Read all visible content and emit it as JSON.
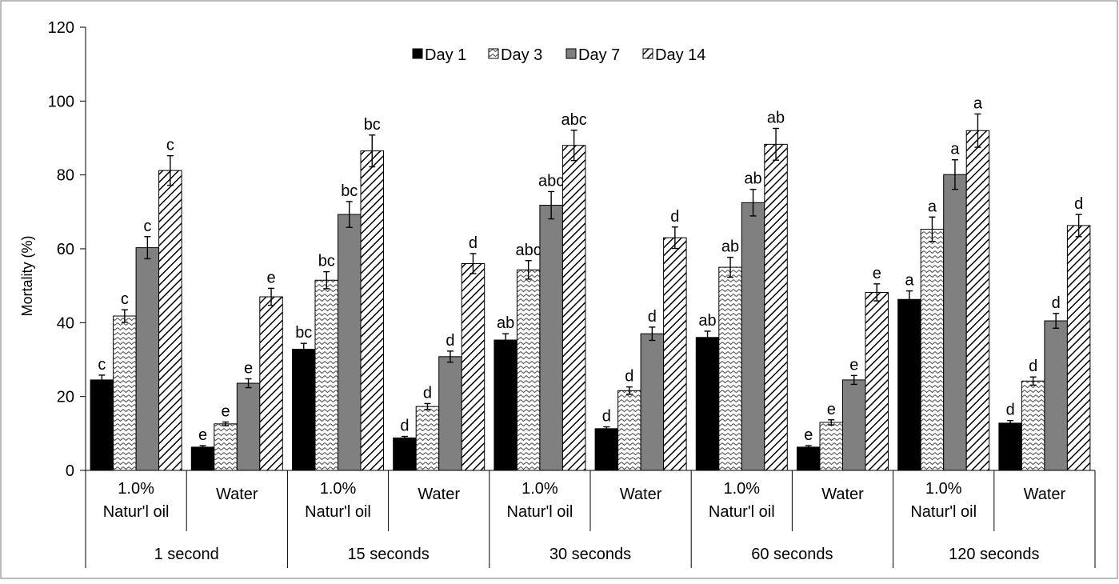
{
  "chart_data": {
    "type": "bar",
    "title": "",
    "xlabel": "",
    "ylabel": "Mortality (%)",
    "ylim": [
      0,
      120
    ],
    "yticks": [
      "0",
      "20",
      "40",
      "60",
      "80",
      "100",
      "120"
    ],
    "legend_position": "top-center",
    "grid": false,
    "treatments": [
      "1.0%\nNatur'l oil",
      "Water"
    ],
    "times": [
      "1 second",
      "15 seconds",
      "30 seconds",
      "60 seconds",
      "120 seconds"
    ],
    "categories": [
      "1 second / 1.0% Natur'l oil",
      "1 second / Water",
      "15 seconds / 1.0% Natur'l oil",
      "15 seconds / Water",
      "30 seconds / 1.0% Natur'l oil",
      "30 seconds / Water",
      "60 seconds / 1.0% Natur'l oil",
      "60 seconds / Water",
      "120 seconds / 1.0% Natur'l oil",
      "120 seconds / Water"
    ],
    "series": [
      {
        "name": "Day 1",
        "color": "#000000",
        "pattern": "solid",
        "values": [
          24.5,
          6.3,
          32.8,
          8.8,
          35.3,
          11.3,
          36.0,
          6.3,
          46.3,
          12.8
        ],
        "errors": [
          1.3,
          0.4,
          1.6,
          0.4,
          1.7,
          0.5,
          1.7,
          0.4,
          2.3,
          0.7
        ],
        "letters": [
          "c",
          "e",
          "bc",
          "d",
          "ab",
          "d",
          "ab",
          "e",
          "a",
          "d"
        ]
      },
      {
        "name": "Day 3",
        "color": "#ffffff",
        "pattern": "zigzag",
        "values": [
          41.8,
          12.6,
          51.5,
          17.3,
          54.3,
          21.6,
          55.0,
          13.0,
          65.3,
          24.2
        ],
        "errors": [
          1.7,
          0.5,
          2.3,
          0.8,
          2.5,
          1.0,
          2.7,
          0.7,
          3.3,
          1.1
        ],
        "letters": [
          "c",
          "e",
          "bc",
          "d",
          "abc",
          "d",
          "ab",
          "e",
          "a",
          "d"
        ]
      },
      {
        "name": "Day 7",
        "color": "#808080",
        "pattern": "solid",
        "values": [
          60.3,
          23.6,
          69.3,
          30.8,
          71.8,
          37.0,
          72.5,
          24.5,
          80.1,
          40.5
        ],
        "errors": [
          3.0,
          1.2,
          3.5,
          1.5,
          3.7,
          1.8,
          3.6,
          1.2,
          4.0,
          2.0
        ],
        "letters": [
          "c",
          "e",
          "bc",
          "d",
          "abc",
          "d",
          "ab",
          "e",
          "a",
          "d"
        ]
      },
      {
        "name": "Day 14",
        "color": "#ffffff",
        "pattern": "diagonal",
        "values": [
          81.2,
          47.0,
          86.5,
          56.0,
          88.0,
          63.0,
          88.3,
          48.2,
          92.0,
          66.3
        ],
        "errors": [
          4.0,
          2.3,
          4.3,
          2.7,
          4.1,
          2.9,
          4.3,
          2.3,
          4.5,
          3.0
        ],
        "letters": [
          "c",
          "e",
          "bc",
          "d",
          "abc",
          "d",
          "ab",
          "e",
          "a",
          "d"
        ]
      }
    ]
  }
}
